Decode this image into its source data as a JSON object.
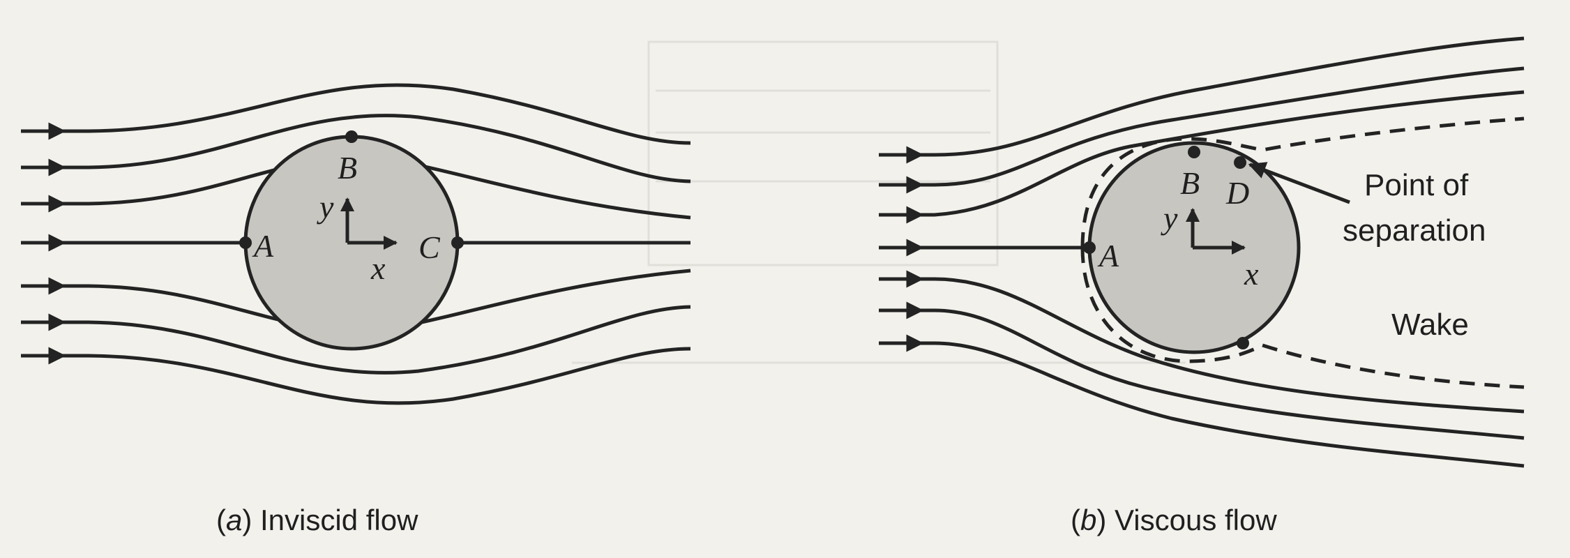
{
  "panels": {
    "a": {
      "caption_letter": "a",
      "caption_text": "Inviscid flow",
      "points": {
        "A": "A",
        "B": "B",
        "C": "C"
      },
      "axes": {
        "x": "x",
        "y": "y"
      }
    },
    "b": {
      "caption_letter": "b",
      "caption_text": "Viscous flow",
      "points": {
        "A": "A",
        "B": "B",
        "D": "D"
      },
      "axes": {
        "x": "x",
        "y": "y"
      },
      "annotations": {
        "separation_line1": "Point of",
        "separation_line2": "separation",
        "wake": "Wake"
      }
    }
  },
  "colors": {
    "cylinder_fill": "#c8c6c1",
    "ink": "#232323",
    "paper": "#f2f1ec"
  }
}
